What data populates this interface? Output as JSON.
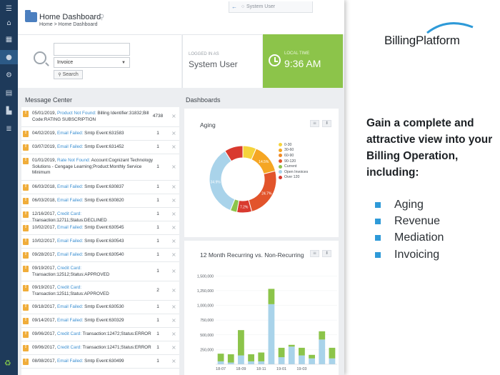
{
  "header": {
    "title": "Home Dashboard",
    "breadcrumb": "Home > Home Dashboard"
  },
  "top_strip": {
    "user_label": "System User"
  },
  "search": {
    "select_value": "Invoice",
    "button_label": "Search"
  },
  "logged_in": {
    "label": "LOGGED IN AS",
    "value": "System User"
  },
  "local_time": {
    "label": "LOCAL TIME",
    "value": "9:36 AM"
  },
  "message_center": {
    "title": "Message Center",
    "messages": [
      {
        "date": "05/01/2019,",
        "type": "Product Not Found:",
        "detail": "Billing Identifier:31832;Bill Code:RATING SUBSCRIPTION",
        "count": "4738"
      },
      {
        "date": "04/02/2019,",
        "type": "Email Failed:",
        "detail": "Smtp Event:631583",
        "count": "1"
      },
      {
        "date": "03/07/2019,",
        "type": "Email Failed:",
        "detail": "Smtp Event:631452",
        "count": "1"
      },
      {
        "date": "01/01/2019,",
        "type": "Rate Not Found:",
        "detail": "Account:Cognizant Technology Solutions - Cengage Learning;Product:Monthly Service Minimum",
        "count": "1"
      },
      {
        "date": "06/03/2018,",
        "type": "Email Failed:",
        "detail": "Smtp Event:630837",
        "count": "1"
      },
      {
        "date": "06/03/2018,",
        "type": "Email Failed:",
        "detail": "Smtp Event:630820",
        "count": "1"
      },
      {
        "date": "12/16/2017,",
        "type": "Credit Card:",
        "detail": "Transaction:12711;Status:DECLINED",
        "count": "1"
      },
      {
        "date": "10/02/2017,",
        "type": "Email Failed:",
        "detail": "Smtp Event:630545",
        "count": "1"
      },
      {
        "date": "10/02/2017,",
        "type": "Email Failed:",
        "detail": "Smtp Event:630543",
        "count": "1"
      },
      {
        "date": "09/28/2017,",
        "type": "Email Failed:",
        "detail": "Smtp Event:630540",
        "count": "1"
      },
      {
        "date": "09/19/2017,",
        "type": "Credit Card:",
        "detail": "Transaction:12512;Status:APPROVED",
        "count": "1"
      },
      {
        "date": "09/19/2017,",
        "type": "Credit Card:",
        "detail": "Transaction:12511;Status:APPROVED",
        "count": "2"
      },
      {
        "date": "09/18/2017,",
        "type": "Email Failed:",
        "detail": "Smtp Event:630530",
        "count": "1"
      },
      {
        "date": "09/14/2017,",
        "type": "Email Failed:",
        "detail": "Smtp Event:630329",
        "count": "1"
      },
      {
        "date": "09/06/2017,",
        "type": "Credit Card:",
        "detail": "Transaction:12472;Status:ERROR",
        "count": "1"
      },
      {
        "date": "09/06/2017,",
        "type": "Credit Card:",
        "detail": "Transaction:12471;Status:ERROR",
        "count": "1"
      },
      {
        "date": "08/08/2017,",
        "type": "Email Failed:",
        "detail": "Smtp Event:630499",
        "count": "1"
      }
    ]
  },
  "dashboards": {
    "title": "Dashboards"
  },
  "chart_data": [
    {
      "type": "pie",
      "title": "Aging",
      "categories": [
        "0-30",
        "30-60",
        "60-90",
        "90-120",
        "Current",
        "Open Invoices",
        "Over 120"
      ],
      "colors": [
        "#f5d33b",
        "#f5a623",
        "#f08a24",
        "#e2542b",
        "#8cc44a",
        "#a9d3ea",
        "#d93a2f"
      ],
      "slices": [
        {
          "category": "0-30",
          "value": 6.5,
          "label": ""
        },
        {
          "category": "30-60",
          "value": 14.5,
          "label": "14.5%"
        },
        {
          "category": "90-120",
          "value": 24.7,
          "label": "24.7%"
        },
        {
          "category": "Over 120",
          "value": 7.2,
          "label": "7.2%"
        },
        {
          "category": "Current",
          "value": 3.2,
          "label": ""
        },
        {
          "category": "Open Invoices",
          "value": 34.9,
          "label": "34.9%"
        },
        {
          "category": "Over 120",
          "value": 9.0,
          "label": ""
        }
      ]
    },
    {
      "type": "bar",
      "title": "12 Month Recurring vs. Non-Recurring",
      "yticks": [
        "1,500,000",
        "1,250,000",
        "1,000,000",
        "750,000",
        "500,000",
        "250,000"
      ],
      "ylim": [
        0,
        1600000
      ],
      "xticks": [
        "18-07",
        "18-09",
        "18-11",
        "19-01",
        "19-03"
      ],
      "series": [
        {
          "color": "#a9d3ea",
          "values": [
            50000,
            30000,
            150000,
            50000,
            50000,
            1020000,
            120000,
            300000,
            150000,
            100000,
            420000,
            100000
          ]
        },
        {
          "color": "#8cc44a",
          "values": [
            130000,
            140000,
            430000,
            120000,
            150000,
            260000,
            160000,
            30000,
            130000,
            60000,
            140000,
            180000
          ]
        }
      ]
    }
  ],
  "marketing": {
    "brand": "BillingPlatform",
    "pitch": "Gain a complete and attractive view into your Billing Operation, including:",
    "bullets": [
      "Aging",
      "Revenue",
      "Mediation",
      "Invoicing"
    ]
  }
}
